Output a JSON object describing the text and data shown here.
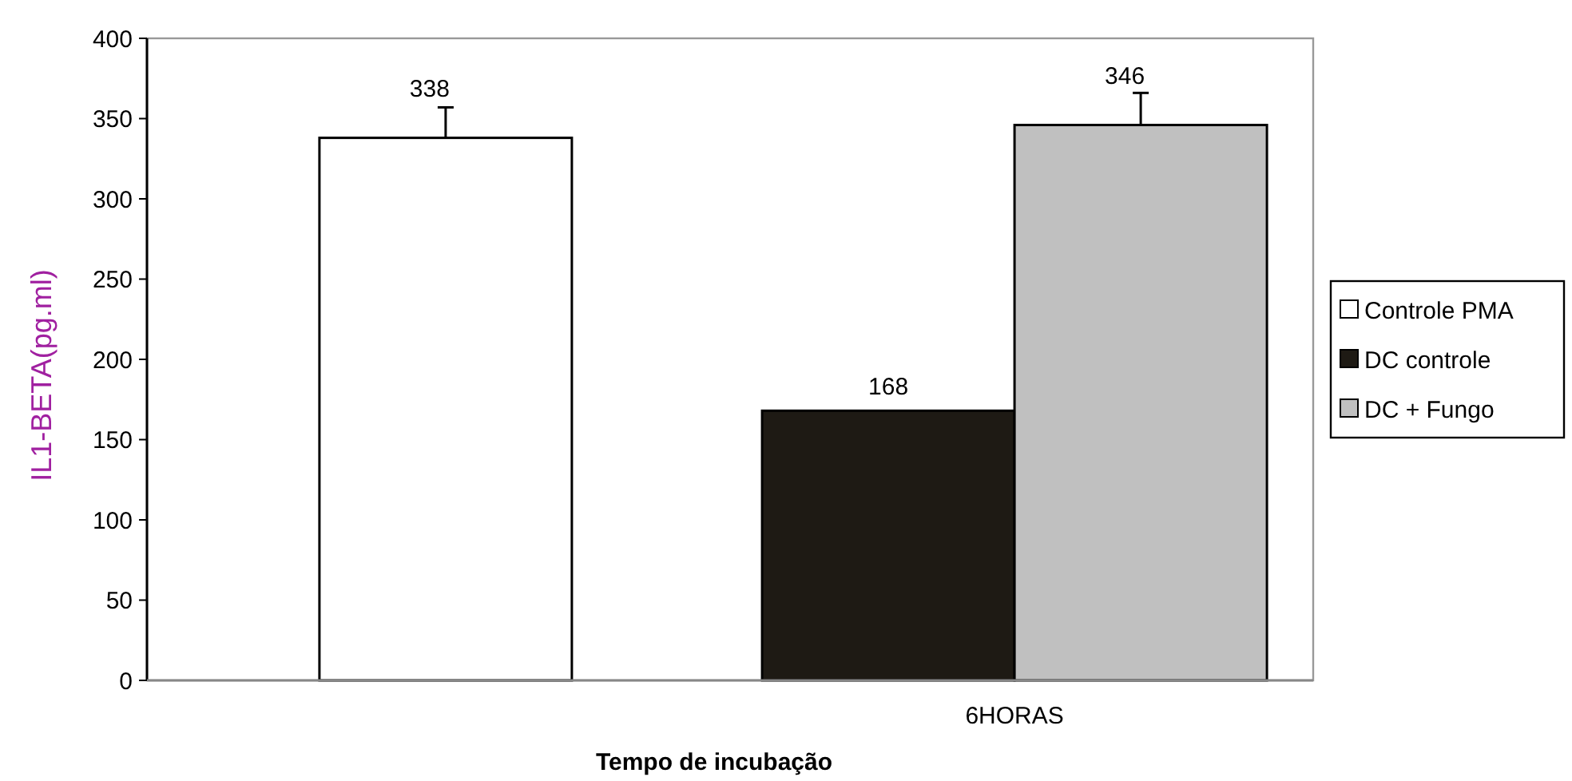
{
  "chart_data": {
    "type": "bar",
    "xlabel": "Tempo de incubação",
    "ylabel": "IL1-BETA(pg.ml)",
    "categories": [
      null,
      "6HORAS"
    ],
    "series": [
      {
        "name": "Controle PMA",
        "color": "#ffffff",
        "values": [
          338,
          null
        ],
        "errors": [
          [
            338,
            357
          ],
          null
        ]
      },
      {
        "name": "DC controle",
        "color": "#1e1a14",
        "values": [
          null,
          168
        ]
      },
      {
        "name": "DC + Fungo",
        "color": "#c0c0c0",
        "values": [
          null,
          346
        ],
        "errors": [
          null,
          [
            346,
            366
          ]
        ]
      }
    ],
    "ylim": [
      0,
      400
    ],
    "yticks": [
      0,
      50,
      100,
      150,
      200,
      250,
      300,
      350,
      400
    ],
    "data_labels": true,
    "legend": "right",
    "grid": false
  }
}
